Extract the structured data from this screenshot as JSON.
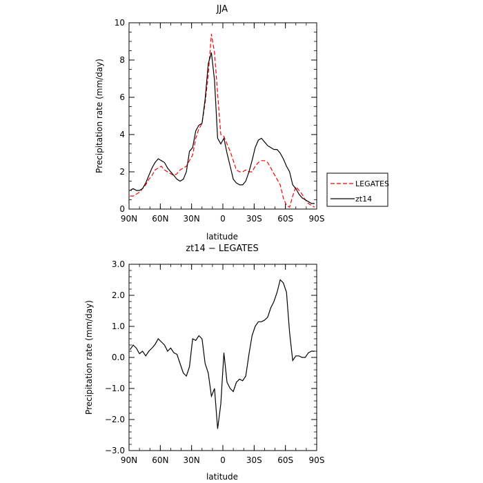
{
  "chart_data": [
    {
      "type": "line",
      "title": "JJA",
      "xlabel": "latitude",
      "ylabel": "Precipitation rate (mm/day)",
      "xlim": [
        90,
        -90
      ],
      "ylim": [
        0,
        10
      ],
      "x_ticks": [
        90,
        60,
        30,
        0,
        -30,
        -60,
        -90
      ],
      "x_tick_labels": [
        "90N",
        "60N",
        "30N",
        "0",
        "30S",
        "60S",
        "90S"
      ],
      "y_ticks": [
        0,
        2,
        4,
        6,
        8,
        10
      ],
      "y_tick_labels": [
        "0",
        "2",
        "4",
        "6",
        "8",
        "10"
      ],
      "legend_position": "right",
      "series": [
        {
          "name": "LEGATES",
          "color": "#ff0000",
          "style": "dashed",
          "x": [
            89,
            86,
            83,
            80,
            77,
            74,
            71,
            68,
            65,
            62,
            59,
            56,
            53,
            50,
            47,
            44,
            41,
            38,
            35,
            32,
            29,
            26,
            23,
            20,
            17,
            14,
            11,
            8,
            5,
            2,
            -1,
            -4,
            -7,
            -10,
            -13,
            -16,
            -19,
            -22,
            -25,
            -28,
            -31,
            -34,
            -37,
            -40,
            -43,
            -46,
            -49,
            -52,
            -55,
            -58,
            -61,
            -64,
            -67,
            -70,
            -73,
            -76,
            -79,
            -82,
            -85,
            -88
          ],
          "y": [
            0.7,
            0.7,
            0.8,
            0.9,
            1.1,
            1.3,
            1.6,
            1.8,
            2.1,
            2.2,
            2.3,
            2.1,
            2.0,
            1.9,
            1.8,
            1.9,
            2.1,
            2.2,
            2.3,
            2.6,
            2.9,
            3.8,
            4.3,
            4.6,
            5.7,
            7.2,
            9.4,
            8.4,
            6.2,
            4.0,
            3.9,
            3.5,
            3.1,
            2.6,
            2.1,
            2.0,
            2.0,
            2.1,
            2.0,
            2.0,
            2.3,
            2.5,
            2.6,
            2.6,
            2.5,
            2.2,
            1.9,
            1.6,
            1.3,
            0.6,
            0.2,
            0.1,
            0.7,
            1.2,
            1.0,
            0.8,
            0.5,
            0.3,
            0.2,
            0.1
          ]
        },
        {
          "name": "zt14",
          "color": "#000000",
          "style": "solid",
          "x": [
            89,
            86,
            83,
            80,
            77,
            74,
            71,
            68,
            65,
            62,
            59,
            56,
            53,
            50,
            47,
            44,
            41,
            38,
            35,
            32,
            29,
            26,
            23,
            20,
            17,
            14,
            11,
            8,
            5,
            2,
            -1,
            -4,
            -7,
            -10,
            -13,
            -16,
            -19,
            -22,
            -25,
            -28,
            -31,
            -34,
            -37,
            -40,
            -43,
            -46,
            -49,
            -52,
            -55,
            -58,
            -61,
            -64,
            -67,
            -70,
            -73,
            -76,
            -79,
            -82,
            -85,
            -88
          ],
          "y": [
            1.0,
            1.1,
            1.0,
            1.0,
            1.1,
            1.4,
            1.8,
            2.2,
            2.5,
            2.7,
            2.6,
            2.5,
            2.2,
            2.0,
            1.8,
            1.6,
            1.5,
            1.6,
            2.0,
            3.1,
            3.3,
            4.2,
            4.5,
            4.6,
            5.9,
            7.8,
            8.4,
            6.9,
            3.8,
            3.5,
            3.8,
            3.0,
            2.3,
            1.6,
            1.4,
            1.3,
            1.3,
            1.5,
            2.0,
            2.6,
            3.3,
            3.7,
            3.8,
            3.6,
            3.4,
            3.3,
            3.2,
            3.2,
            3.0,
            2.7,
            2.3,
            2.0,
            1.3,
            1.1,
            0.8,
            0.6,
            0.5,
            0.4,
            0.3,
            0.3
          ]
        }
      ]
    },
    {
      "type": "line",
      "title": "zt14 − LEGATES",
      "xlabel": "latitude",
      "ylabel": "Precipitation rate (mm/day)",
      "xlim": [
        90,
        -90
      ],
      "ylim": [
        -3,
        3
      ],
      "x_ticks": [
        90,
        60,
        30,
        0,
        -30,
        -60,
        -90
      ],
      "x_tick_labels": [
        "90N",
        "60N",
        "30N",
        "0",
        "30S",
        "60S",
        "90S"
      ],
      "y_ticks": [
        -3,
        -2,
        -1,
        0,
        1,
        2,
        3
      ],
      "y_tick_labels": [
        "−3.0",
        "−2.0",
        "−1.0",
        "0.0",
        "1.0",
        "2.0",
        "3.0"
      ],
      "series": [
        {
          "color": "#000000",
          "style": "solid",
          "x": [
            89,
            86,
            83,
            80,
            77,
            74,
            71,
            68,
            65,
            62,
            59,
            56,
            53,
            50,
            47,
            44,
            41,
            38,
            35,
            32,
            29,
            26,
            23,
            20,
            17,
            14,
            11,
            8,
            5,
            2,
            -1,
            -4,
            -7,
            -10,
            -13,
            -16,
            -19,
            -22,
            -25,
            -28,
            -31,
            -34,
            -37,
            -40,
            -43,
            -46,
            -49,
            -52,
            -55,
            -58,
            -61,
            -64,
            -67,
            -70,
            -73,
            -76,
            -79,
            -82,
            -85,
            -88
          ],
          "y": [
            0.25,
            0.4,
            0.3,
            0.12,
            0.2,
            0.05,
            0.2,
            0.3,
            0.42,
            0.6,
            0.5,
            0.4,
            0.2,
            0.3,
            0.15,
            0.1,
            -0.2,
            -0.5,
            -0.6,
            -0.3,
            0.6,
            0.55,
            0.7,
            0.6,
            -0.2,
            -0.5,
            -1.25,
            -1.0,
            -2.3,
            -1.5,
            0.15,
            -0.8,
            -1.0,
            -1.1,
            -0.8,
            -0.7,
            -0.75,
            -0.6,
            0.1,
            0.7,
            1.0,
            1.15,
            1.15,
            1.2,
            1.3,
            1.6,
            1.8,
            2.1,
            2.5,
            2.4,
            2.1,
            0.8,
            -0.1,
            0.05,
            0.05,
            0.0,
            0.0,
            0.15,
            0.2,
            0.2
          ]
        }
      ]
    }
  ]
}
